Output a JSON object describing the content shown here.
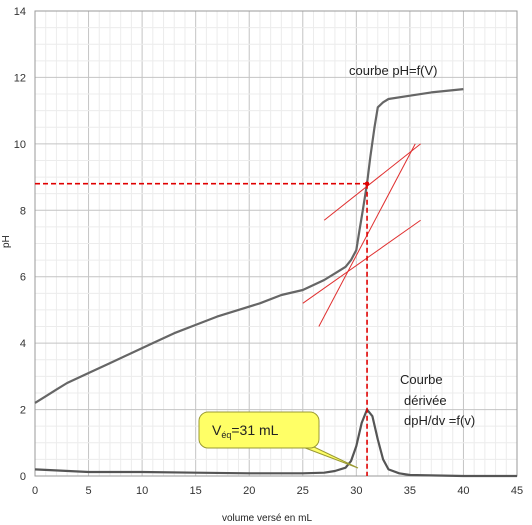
{
  "chart_data": {
    "type": "line",
    "xlabel": "volume versé en mL",
    "ylabel": "pH",
    "xlim": [
      0,
      45
    ],
    "ylim": [
      0,
      14
    ],
    "xticks": [
      0,
      5,
      10,
      15,
      20,
      25,
      30,
      35,
      40,
      45
    ],
    "yticks": [
      0,
      2,
      4,
      6,
      8,
      10,
      12,
      14
    ],
    "grid": true,
    "series": [
      {
        "name": "courbe pH=f(V)",
        "color": "#666666",
        "x": [
          0,
          1,
          2,
          3,
          5,
          7,
          9,
          11,
          13,
          15,
          17,
          19,
          21,
          23,
          25,
          26,
          27,
          28,
          29,
          29.5,
          30,
          30.3,
          30.6,
          31,
          31.3,
          31.7,
          32,
          32.5,
          33,
          35,
          37,
          40
        ],
        "y": [
          2.2,
          2.4,
          2.6,
          2.8,
          3.1,
          3.4,
          3.7,
          4.0,
          4.3,
          4.55,
          4.8,
          5.0,
          5.2,
          5.45,
          5.6,
          5.75,
          5.9,
          6.1,
          6.3,
          6.5,
          6.8,
          7.4,
          8.0,
          8.8,
          9.6,
          10.5,
          11.1,
          11.25,
          11.35,
          11.45,
          11.55,
          11.65
        ]
      },
      {
        "name": "Courbe dérivée dpH/dv =f(v)",
        "color": "#555555",
        "x": [
          0,
          5,
          10,
          15,
          20,
          25,
          27,
          28,
          29,
          29.5,
          30,
          30.5,
          31,
          31.5,
          32,
          32.5,
          33,
          34,
          35,
          40,
          45
        ],
        "y": [
          0.2,
          0.12,
          0.12,
          0.1,
          0.08,
          0.08,
          0.1,
          0.15,
          0.25,
          0.45,
          0.9,
          1.6,
          2.0,
          1.8,
          1.1,
          0.5,
          0.2,
          0.08,
          0.03,
          0.0,
          0.0
        ]
      }
    ],
    "tangents": [
      {
        "x": [
          26.5,
          35.5
        ],
        "y": [
          4.5,
          10.0
        ],
        "color": "#e03030"
      },
      {
        "x": [
          27,
          36
        ],
        "y": [
          7.7,
          10.0
        ],
        "color": "#e03030"
      },
      {
        "x": [
          25,
          36
        ],
        "y": [
          5.2,
          7.7
        ],
        "color": "#e03030"
      }
    ],
    "equivalence": {
      "x": 31,
      "y": 8.8,
      "color": "#e00000"
    },
    "annotations": {
      "ph_label": "courbe pH=f(V)",
      "derivative_label": [
        "Courbe",
        "dérivée",
        "dpH/dv =f(v)"
      ],
      "callout_main": "V",
      "callout_sub": "éq",
      "callout_value": "=31 mL",
      "callout_color": "#ffff66"
    }
  }
}
